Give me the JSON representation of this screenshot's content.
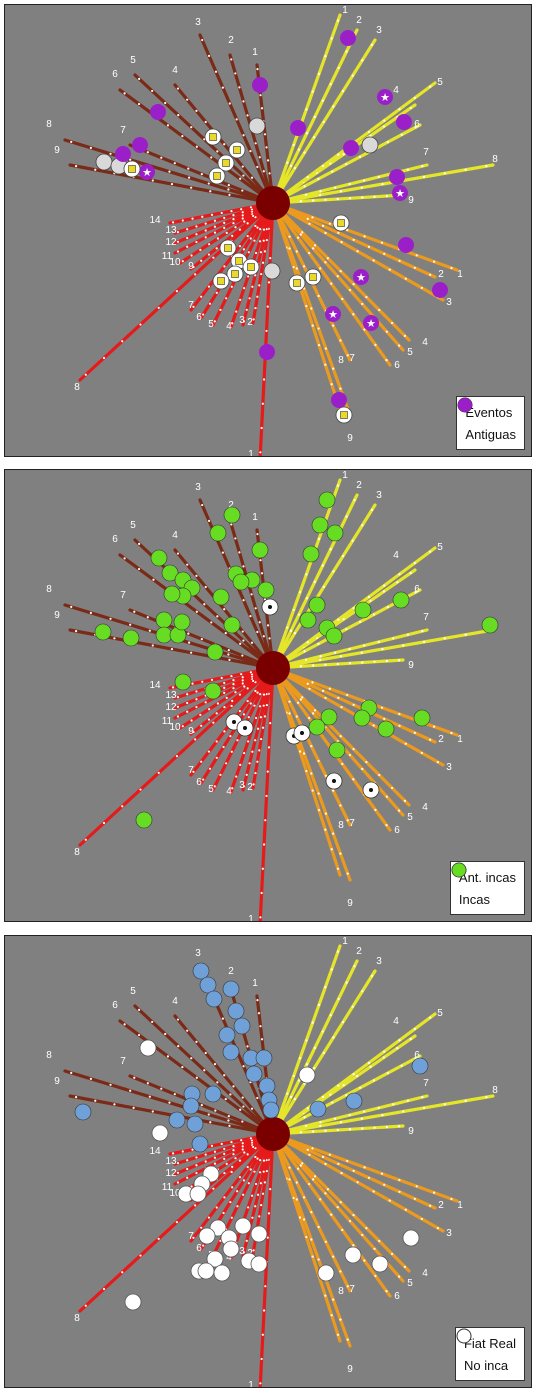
{
  "colors": {
    "background": "#808080",
    "hub": "#7a0000",
    "branch_brown": "#7a2a16",
    "branch_yellow": "#e5e52a",
    "branch_orange": "#ec9a1e",
    "branch_red": "#e61a1a",
    "eventos": "#d9d9d9",
    "antiguas": "#9b1fc8",
    "incas": "#66dd22",
    "ant_incas": "#ffffff",
    "fiat_real": "#6fa0d8",
    "no_inca": "#ffffff"
  },
  "panels": [
    {
      "legend": [
        {
          "label": "Eventos",
          "icon": "gray-circle-icon",
          "color": "#d9d9d9"
        },
        {
          "label": "Antiguas",
          "icon": "purple-circle-icon",
          "color": "#9b1fc8"
        }
      ]
    },
    {
      "legend": [
        {
          "label": "Ant. incas",
          "icon": "dotted-circle-icon",
          "color": "#ffffff"
        },
        {
          "label": "Incas",
          "icon": "green-circle-icon",
          "color": "#66dd22"
        }
      ]
    },
    {
      "legend": [
        {
          "label": "Fiat Real",
          "icon": "blue-circle-icon",
          "color": "#6fa0d8"
        },
        {
          "label": "No inca",
          "icon": "white-circle-icon",
          "color": "#ffffff"
        }
      ]
    }
  ],
  "branch_labels": {
    "brown": [
      "1",
      "2",
      "3",
      "4",
      "5",
      "6",
      "7",
      "8",
      "9"
    ],
    "yellow": [
      "1",
      "2",
      "3",
      "4",
      "5",
      "6",
      "7",
      "8",
      "9"
    ],
    "orange": [
      "1",
      "2",
      "3",
      "4",
      "5",
      "6",
      "7",
      "8",
      "9"
    ],
    "red": [
      "1",
      "2",
      "3",
      "4",
      "5",
      "6",
      "7",
      "8",
      "9",
      "10",
      "11",
      "12",
      "13",
      "14"
    ]
  }
}
